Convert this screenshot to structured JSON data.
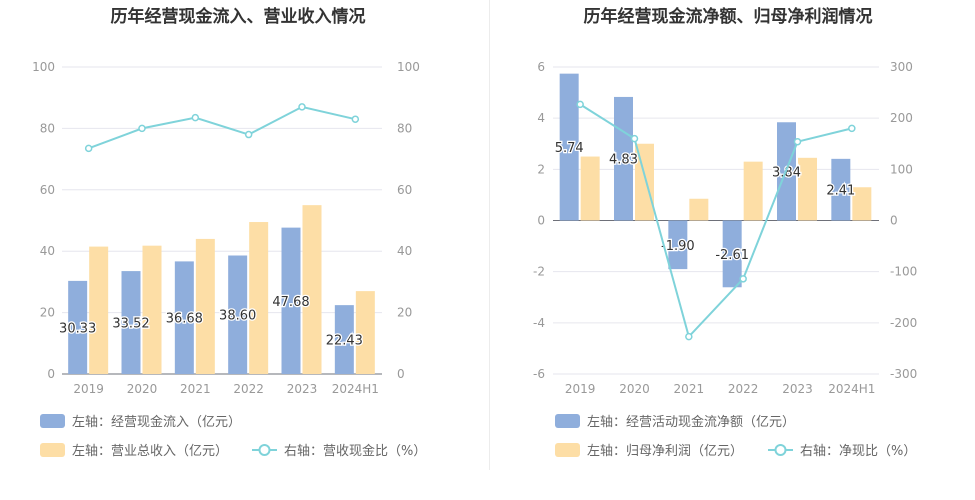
{
  "colors": {
    "bar_blue": "#8faedc",
    "bar_orange": "#fddea6",
    "line_teal": "#7fd3da",
    "grid": "#e6e6ee",
    "axis_text": "#999999",
    "title_text": "#333333",
    "legend_text": "#666666",
    "label_text": "#333333"
  },
  "chart_data": [
    {
      "type": "bar",
      "title": "历年经营现金流入、营业收入情况",
      "categories": [
        "2019",
        "2020",
        "2021",
        "2022",
        "2023",
        "2024H1"
      ],
      "left_axis": {
        "ticks": [
          "0",
          "20",
          "40",
          "60",
          "80",
          "100"
        ],
        "ylim": [
          0,
          100
        ]
      },
      "right_axis": {
        "ticks": [
          "0",
          "20",
          "40",
          "60",
          "80",
          "100"
        ],
        "ylim": [
          0,
          100
        ]
      },
      "grid": true,
      "legend_placement": "bottom",
      "series": [
        {
          "name": "左轴：经营现金流入（亿元）",
          "type": "bar",
          "axis": "left",
          "color": "#8faedc",
          "values": [
            30.33,
            33.52,
            36.68,
            38.6,
            47.68,
            22.43
          ],
          "labels": [
            "30.33",
            "33.52",
            "36.68",
            "38.60",
            "47.68",
            "22.43"
          ]
        },
        {
          "name": "左轴：营业总收入（亿元）",
          "type": "bar",
          "axis": "left",
          "color": "#fddea6",
          "values": [
            41.5,
            41.8,
            44,
            49.5,
            55,
            27
          ]
        },
        {
          "name": "右轴：营收现金比（%）",
          "type": "line",
          "axis": "right",
          "color": "#7fd3da",
          "values": [
            73.5,
            80,
            83.5,
            78,
            87,
            83
          ]
        }
      ]
    },
    {
      "type": "bar",
      "title": "历年经营现金流净额、归母净利润情况",
      "categories": [
        "2019",
        "2020",
        "2021",
        "2022",
        "2023",
        "2024H1"
      ],
      "left_axis": {
        "ticks": [
          "-6",
          "-4",
          "-2",
          "0",
          "2",
          "4",
          "6"
        ],
        "ylim": [
          -6,
          6
        ]
      },
      "right_axis": {
        "ticks": [
          "-300",
          "-200",
          "-100",
          "0",
          "100",
          "200",
          "300"
        ],
        "ylim": [
          -300,
          300
        ]
      },
      "grid": true,
      "legend_placement": "bottom",
      "series": [
        {
          "name": "左轴：经营活动现金流净额（亿元）",
          "type": "bar",
          "axis": "left",
          "color": "#8faedc",
          "values": [
            5.74,
            4.83,
            -1.9,
            -2.61,
            3.84,
            2.41
          ],
          "labels": [
            "5.74",
            "4.83",
            "-1.90",
            "-2.61",
            "3.84",
            "2.41"
          ]
        },
        {
          "name": "左轴：归母净利润（亿元）",
          "type": "bar",
          "axis": "left",
          "color": "#fddea6",
          "values": [
            2.5,
            3.0,
            0.85,
            2.3,
            2.45,
            1.3
          ]
        },
        {
          "name": "右轴：净现比（%）",
          "type": "line",
          "axis": "right",
          "color": "#7fd3da",
          "values": [
            227,
            160,
            -227,
            -114,
            154,
            180
          ]
        }
      ]
    }
  ]
}
